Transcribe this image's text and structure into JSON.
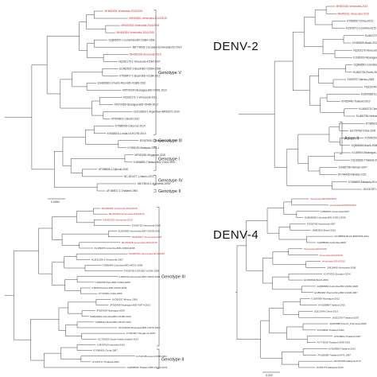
{
  "panels": [
    {
      "id": "denv1",
      "title": "",
      "leaves": [
        {
          "label": "MH450300-Venezuela-2014/2015",
          "highlight": true
        },
        {
          "label": "MH450301-Venezuela-2014/2015",
          "highlight": true
        },
        {
          "label": "MH450302-Venezuela-2014/2015",
          "highlight": true
        },
        {
          "label": "MH450304-Venezuela-2014/2015",
          "highlight": true
        },
        {
          "label": "GQ868570-1-Colombia-BID-V3384-2008",
          "highlight": false
        },
        {
          "label": "MK778578-1-Ecuador-Esmeraldas/10-2014",
          "highlight": false
        },
        {
          "label": "MH450308-Venezuela-2015",
          "highlight": true
        },
        {
          "label": "HQ332175-1-Venezuela-41064-2007",
          "highlight": false
        },
        {
          "label": "EU482591-1-Brazil-BID-V2284-2008",
          "highlight": false
        },
        {
          "label": "KT998477-1-Brazil-BID-V3184-2012",
          "highlight": false
        },
        {
          "label": "EU482680-1-Puerto-Rico-BID-V1866-2010",
          "highlight": false
        },
        {
          "label": "MF576324-Nicaragua-BID-V2081-2010",
          "highlight": false
        },
        {
          "label": "HQ332171-1-Venezuela-2011",
          "highlight": false
        },
        {
          "label": "KF973453-Nicaragua-BID-V5484-2012",
          "highlight": false
        },
        {
          "label": "GU131863-1-Argentina-HM502371-2010",
          "highlight": false
        },
        {
          "label": "KP406801-1-Brazil-2012",
          "highlight": false
        },
        {
          "label": "KY586436-China-GZ-2014",
          "highlight": false
        },
        {
          "label": "KX618818-1-India-UCH1749-2014",
          "highlight": false
        },
        {
          "label": "EF457905-1-Malaysia-1264-1972",
          "highlight": false
        },
        {
          "label": "KY553190-Malaysia-2014-1",
          "highlight": false
        },
        {
          "label": "MF033260-Singapore-2015",
          "highlight": false
        },
        {
          "label": "KJ806883-Thailand-BID-V1842-2001",
          "highlight": false
        },
        {
          "label": "AF298808-1-Djibouti-2000",
          "highlight": false
        },
        {
          "label": "NC-001477-1-Nauru-1974",
          "highlight": false
        },
        {
          "label": "AB178040-1-Indonesia-1998",
          "highlight": false
        },
        {
          "label": "AF180817-1-Thailand-1964",
          "highlight": false
        }
      ],
      "genotypes": [
        {
          "label": "Genotype V"
        },
        {
          "label": "Genotype III"
        },
        {
          "label": "Genotype I"
        },
        {
          "label": "Genotype IV"
        },
        {
          "label": "Genotype II"
        }
      ],
      "scale_label": "0.0060"
    },
    {
      "id": "denv2",
      "title": "DENV-2",
      "leaves": [
        {
          "label": "MH450310-Venezuela-2014",
          "highlight": true
        },
        {
          "label": "MH450311-Venezuela-2015",
          "highlight": true
        },
        {
          "label": "KY586537-China-2015",
          "highlight": false
        },
        {
          "label": "KU509272-Colombia-2015",
          "highlight": false
        },
        {
          "label": "EU482707-Peru-2009",
          "highlight": false
        },
        {
          "label": "KX380828-Brazil-2013",
          "highlight": false
        },
        {
          "label": "HQ332176-Venezuela-2007",
          "highlight": false
        },
        {
          "label": "KJ189303-Nicaragua-2008",
          "highlight": false
        },
        {
          "label": "GQ868591-Colombia-2008",
          "highlight": false
        },
        {
          "label": "EU482725-Puerto-Rico-2006",
          "highlight": false
        },
        {
          "label": "FJ639707-Mexico-2008",
          "highlight": false
        },
        {
          "label": "FM210240-Nicaragua-2005",
          "highlight": false
        },
        {
          "label": "KU509288-Ecuador-2014",
          "highlight": false
        },
        {
          "label": "KF955446-Thailand-2010",
          "highlight": false
        },
        {
          "label": "KU400275-China-2013",
          "highlight": false
        },
        {
          "label": "EU482769-Vietnam-2006",
          "highlight": false
        },
        {
          "label": "KY586311-Bangladesh-2011",
          "highlight": false
        },
        {
          "label": "EU726768-China-2006",
          "highlight": false
        },
        {
          "label": "KU509253-Haiti-2014",
          "highlight": false
        },
        {
          "label": "GQ868583-Brazil-2008",
          "highlight": false
        },
        {
          "label": "KJ189304-Nicaragua-2005",
          "highlight": false
        },
        {
          "label": "DQ181806-Thailand-2005",
          "highlight": false
        },
        {
          "label": "EU482748-Vietnam-2007",
          "highlight": false
        },
        {
          "label": "KF744406-Pakistan-2011",
          "highlight": false
        },
        {
          "label": "KY586699-Malaysia-2014",
          "highlight": false
        },
        {
          "label": "GU131937-Singapore-2005",
          "highlight": false
        }
      ],
      "genotypes": [
        {
          "label": "Asian II"
        }
      ],
      "scale_label": ""
    },
    {
      "id": "denv3",
      "title": "",
      "leaves": [
        {
          "label": "MH450325-Venezuela-2014/2015",
          "highlight": true
        },
        {
          "label": "MH450326-Venezuela-2014/2015",
          "highlight": true
        },
        {
          "label": "MH450330-Venezuela-2015",
          "highlight": true
        },
        {
          "label": "FJ639725-Venezuela-2008",
          "highlight": false
        },
        {
          "label": "EU529692-Venezuela-BID-V2428-2006",
          "highlight": false
        },
        {
          "label": "MH450327-Venezuela-2015",
          "highlight": true
        },
        {
          "label": "MH450328-Venezuela-2014/2015",
          "highlight": true
        },
        {
          "label": "KJ189376-Colombia-BID-V3399-2008",
          "highlight": false
        },
        {
          "label": "MH450321-Venezuela-2014/2015",
          "highlight": true
        },
        {
          "label": "HQ332186-1-Venezuela-2007",
          "highlight": false
        },
        {
          "label": "FJ898446-Colombia-BID-V4031-2008",
          "highlight": false
        },
        {
          "label": "FJ639750-USA-BID-V1206-2008",
          "highlight": false
        },
        {
          "label": "FJ639722-Venezuela-BID-V2024-2006",
          "highlight": false
        },
        {
          "label": "FJ639708-Peru-BID-V2024-2006",
          "highlight": false
        },
        {
          "label": "FJ639734-Peru-BID-V2045-2005",
          "highlight": false
        },
        {
          "label": "KT726361-Cuba-2000",
          "highlight": false
        },
        {
          "label": "AY099337-Mexico-2006",
          "highlight": false
        },
        {
          "label": "JF920409-Nicaragua-BID-V5474-2010",
          "highlight": false
        },
        {
          "label": "JF920428-Nicaragua-2009",
          "highlight": false
        },
        {
          "label": "MH544484-Colombia-BID-V6495-2012",
          "highlight": false
        },
        {
          "label": "FJ898441-Brazil-BID-V5470-2010",
          "highlight": false
        },
        {
          "label": "GU131940-Nicaragua-BID-V4470-2010",
          "highlight": false
        },
        {
          "label": "KY921907-Singapore-2015",
          "highlight": false
        },
        {
          "label": "KC762653-Saudi-Arabia-Jeddah-2014",
          "highlight": false
        },
        {
          "label": "KJ830750-Indonesia-2010",
          "highlight": false
        },
        {
          "label": "KY586491-China-2007",
          "highlight": false
        },
        {
          "label": "FJ744748-Laos-1/1998-2004",
          "highlight": false
        },
        {
          "label": "AY145717-Thailand-2001",
          "highlight": false
        },
        {
          "label": "GQ868593-Thailand-BID-V2403-1973",
          "highlight": false
        }
      ],
      "genotypes": [
        {
          "label": "Genotype III"
        },
        {
          "label": "Genotype II"
        }
      ],
      "scale_label": ""
    },
    {
      "id": "denv4",
      "title": "DENV-4",
      "leaves": [
        {
          "label": "Venezuela-82/2000/2001",
          "highlight": true
        },
        {
          "label": "Venezuela-82/2000/2001",
          "highlight": true
        },
        {
          "label": "FJ882597-Venezuela-2007",
          "highlight": false
        },
        {
          "label": "GQ868585-Colombia-BID-V3361-2008",
          "highlight": false
        },
        {
          "label": "FJ639706-Venezuela-2007",
          "highlight": false
        },
        {
          "label": "JN983813-Brazil-2010",
          "highlight": false
        },
        {
          "label": "KF188863-Brazil-BJRP909-2011",
          "highlight": false
        },
        {
          "label": "GQ868594-Colombia-2008",
          "highlight": false
        },
        {
          "label": "Venezuela-2014/2015",
          "highlight": true
        },
        {
          "label": "Venezuela-2014/2015",
          "highlight": true
        },
        {
          "label": "Venezuela-2014/2015",
          "highlight": true
        },
        {
          "label": "JN819406-Venezuela-2008",
          "highlight": false
        },
        {
          "label": "KY474335-Ecuador-2014",
          "highlight": false
        },
        {
          "label": "EU482642-Brazil-2009",
          "highlight": false
        },
        {
          "label": "GQ868586-Colombia-BID-V3363-2008",
          "highlight": false
        },
        {
          "label": "EU854297-Puerto-Rico-BID-V1046-2007",
          "highlight": false
        },
        {
          "label": "KJ189368-Nicaragua-2012",
          "highlight": false
        },
        {
          "label": "AY618988-Thailand-2001",
          "highlight": false
        },
        {
          "label": "JQ513346-China-2013",
          "highlight": false
        },
        {
          "label": "JN022378-Thailand-2007",
          "highlight": false
        },
        {
          "label": "JQ915089-French_Polynesia-2009",
          "highlight": false
        },
        {
          "label": "AY618992-Thailand-1994",
          "highlight": false
        },
        {
          "label": "AY618993-Thailand-1997",
          "highlight": false
        },
        {
          "label": "AY776330-Thailand-0348-1991",
          "highlight": false
        },
        {
          "label": "AY618990-Thailand-2001",
          "highlight": false
        },
        {
          "label": "AY618989-Thailand-0476-1997",
          "highlight": false
        },
        {
          "label": "EF457906-Malaysia-P73",
          "highlight": false
        },
        {
          "label": "JF262779-Malaysia-1975",
          "highlight": false
        }
      ],
      "genotypes": [],
      "scale_label": "0.020"
    }
  ],
  "colors": {
    "highlight": "#d62828",
    "normal": "#333333",
    "branch": "#444444"
  }
}
